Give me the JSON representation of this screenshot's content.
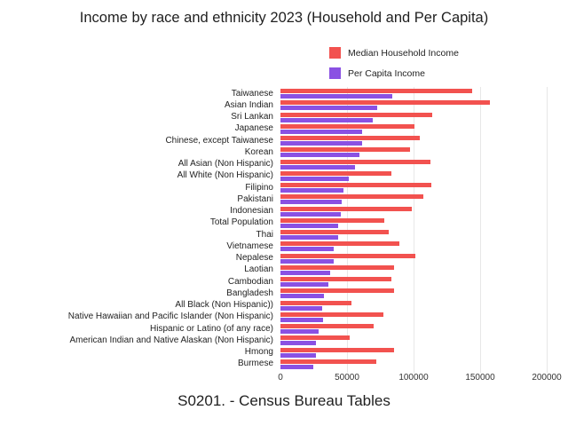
{
  "title": "Income by race and ethnicity 2023 (Household and Per Capita)",
  "caption": "S0201. - Census Bureau Tables",
  "colors": {
    "household_income": "#f2524f",
    "per_capita_income": "#8a51e3",
    "gridline": "#e7e7e7",
    "text": "#1f1f1f"
  },
  "chart_data": {
    "type": "bar",
    "orientation": "horizontal",
    "title": "Income by race and ethnicity 2023 (Household and Per Capita)",
    "xlabel": "",
    "ylabel": "",
    "xlim": [
      0,
      200000
    ],
    "xticks": [
      0,
      50000,
      100000,
      150000,
      200000
    ],
    "xtick_labels": [
      "0",
      "50000",
      "100000",
      "150000",
      "200000"
    ],
    "grid": "vertical gridlines on",
    "legend_position": "top-right",
    "source_note": "S0201. - Census Bureau Tables",
    "categories": [
      "Taiwanese",
      "Asian Indian",
      "Sri Lankan",
      "Japanese",
      "Chinese, except Taiwanese",
      "Korean",
      "All Asian (Non Hispanic)",
      "All White (Non Hispanic)",
      "Filipino",
      "Pakistani",
      "Indonesian",
      "Total Population",
      "Thai",
      "Vietnamese",
      "Nepalese",
      "Laotian",
      "Cambodian",
      "Bangladesh",
      "All Black (Non Hispanic))",
      "Native Hawaiian and Pacific Islander (Non Hispanic)",
      "Hispanic or Latino (of any race)",
      "American Indian and Native Alaskan (Non Hispanic)",
      "Hmong",
      "Burmese"
    ],
    "series": [
      {
        "name": "Median Household Income",
        "color": "#f2524f",
        "values": [
          144000,
          157500,
          114000,
          100500,
          104500,
          97500,
          112500,
          83500,
          113000,
          107000,
          98500,
          78000,
          81000,
          89000,
          101500,
          85500,
          83500,
          85000,
          53500,
          77500,
          70000,
          52000,
          85000,
          72000
        ]
      },
      {
        "name": "Per Capita Income",
        "color": "#8a51e3",
        "values": [
          84000,
          72500,
          69500,
          61500,
          61000,
          59000,
          56000,
          51000,
          47500,
          46000,
          45000,
          43500,
          43000,
          40000,
          40000,
          37000,
          36000,
          32500,
          31500,
          32000,
          28500,
          26500,
          26500,
          24500
        ]
      }
    ]
  }
}
